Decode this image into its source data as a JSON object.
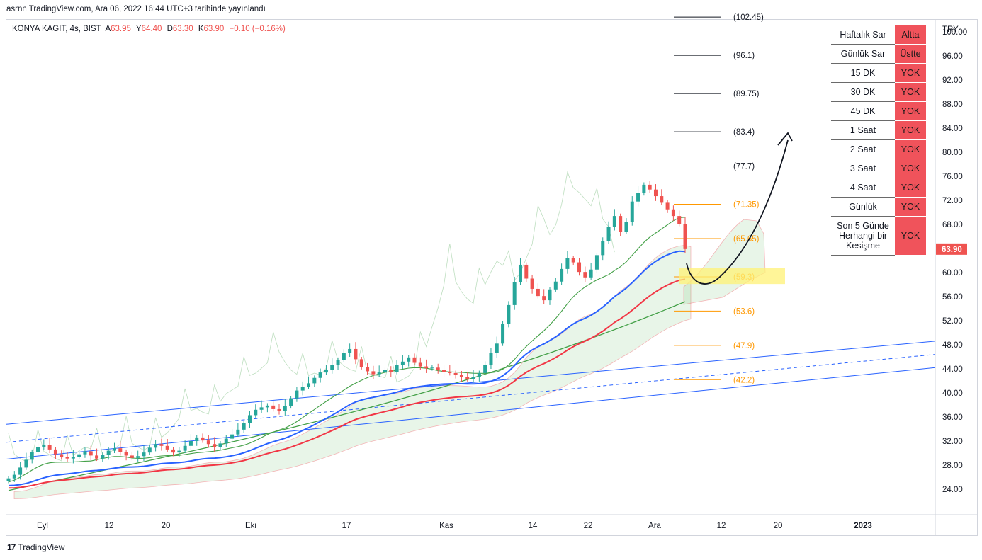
{
  "header": {
    "published": "asrnn TradingView.com, Ara 06, 2022 16:44 UTC+3 tarihinde yayınlandı"
  },
  "legend": {
    "symbol": "KONYA KAGIT, 4s, BIST",
    "open_label": "A",
    "open": "63.95",
    "high_label": "Y",
    "high": "64.40",
    "low_label": "D",
    "low": "63.30",
    "close_label": "K",
    "close": "63.90",
    "change": "−0.10 (−0.16%)"
  },
  "footer": {
    "brand": "TradingView"
  },
  "signal_table": [
    {
      "label": "Haftalık Sar",
      "status": "Altta"
    },
    {
      "label": "Günlük Sar",
      "status": "Üstte"
    },
    {
      "label": "15 DK",
      "status": "YOK"
    },
    {
      "label": "30 DK",
      "status": "YOK"
    },
    {
      "label": "45 DK",
      "status": "YOK"
    },
    {
      "label": "1 Saat",
      "status": "YOK"
    },
    {
      "label": "2 Saat",
      "status": "YOK"
    },
    {
      "label": "3 Saat",
      "status": "YOK"
    },
    {
      "label": "4 Saat",
      "status": "YOK"
    },
    {
      "label": "Günlük",
      "status": "YOK"
    },
    {
      "label": "Son 5 Günde Herhangi bir Kesişme",
      "status": "YOK"
    }
  ],
  "colors": {
    "up": "#26a69a",
    "down": "#ef5350",
    "price_tag": "#ef5350",
    "ema_blue": "#2962ff",
    "ema_red": "#f23645",
    "green_line": "#43a047",
    "channel": "#2962ff",
    "fib": "#ff9800",
    "highlight": "#fff176",
    "status_bg": "#f0535b"
  },
  "chart_data": {
    "type": "candlestick",
    "currency": "TRY",
    "last_price": "63.90",
    "y_ticks": [
      "100.00",
      "96.00",
      "92.00",
      "88.00",
      "84.00",
      "80.00",
      "76.00",
      "72.00",
      "68.00",
      "64.00",
      "60.00",
      "56.00",
      "52.00",
      "48.00",
      "44.00",
      "40.00",
      "36.00",
      "32.00",
      "28.00",
      "24.00"
    ],
    "ylim": [
      22,
      103.5
    ],
    "x_ticks": [
      "Eyl",
      "12",
      "20",
      "Eki",
      "17",
      "Kas",
      "14",
      "22",
      "Ara",
      "12",
      "20",
      "2023"
    ],
    "fib_levels": [
      {
        "value": 102.45,
        "label": "(102.45)",
        "kind": "black"
      },
      {
        "value": 96.1,
        "label": "(96.1)",
        "kind": "black"
      },
      {
        "value": 89.75,
        "label": "(89.75)",
        "kind": "black"
      },
      {
        "value": 83.4,
        "label": "(83.4)",
        "kind": "black"
      },
      {
        "value": 77.7,
        "label": "(77.7)",
        "kind": "black"
      },
      {
        "value": 71.35,
        "label": "(71.35)",
        "kind": "orange"
      },
      {
        "value": 65.65,
        "label": "(65.65)",
        "kind": "orange"
      },
      {
        "value": 59.3,
        "label": "(59.3)",
        "kind": "orange"
      },
      {
        "value": 53.6,
        "label": "(53.6)",
        "kind": "orange"
      },
      {
        "value": 47.9,
        "label": "(47.9)",
        "kind": "orange"
      },
      {
        "value": 42.2,
        "label": "(42.2)",
        "kind": "orange"
      }
    ],
    "highlight_zone": [
      58.1,
      60.8
    ],
    "closes": [
      25.8,
      26.4,
      27.6,
      28.9,
      30.2,
      31.0,
      31.4,
      30.6,
      29.8,
      29.3,
      29.1,
      29.4,
      29.8,
      30.3,
      29.6,
      29.1,
      29.7,
      30.4,
      30.8,
      30.2,
      29.6,
      29.2,
      29.5,
      30.1,
      30.9,
      31.5,
      31.2,
      30.6,
      30.1,
      30.4,
      31.2,
      32.0,
      32.6,
      32.1,
      31.5,
      31.0,
      31.6,
      32.4,
      33.1,
      33.9,
      35.0,
      36.3,
      37.2,
      37.6,
      37.9,
      37.3,
      37.0,
      37.8,
      39.1,
      40.4,
      41.0,
      41.6,
      42.5,
      43.4,
      43.8,
      44.6,
      45.5,
      46.6,
      47.3,
      45.6,
      44.3,
      43.6,
      43.1,
      43.4,
      43.8,
      43.5,
      44.6,
      45.2,
      45.9,
      45.0,
      44.4,
      44.1,
      44.2,
      43.8,
      43.5,
      43.3,
      43.0,
      42.6,
      42.3,
      42.7,
      43.3,
      44.6,
      46.6,
      48.2,
      51.5,
      54.6,
      58.4,
      61.3,
      59.0,
      57.3,
      56.1,
      55.4,
      57.2,
      58.5,
      60.6,
      62.4,
      61.7,
      60.1,
      59.2,
      60.5,
      62.9,
      65.2,
      67.6,
      69.4,
      66.8,
      68.4,
      71.8,
      73.2,
      74.6,
      73.8,
      72.7,
      71.6,
      70.5,
      69.4,
      68.1,
      63.9
    ]
  }
}
